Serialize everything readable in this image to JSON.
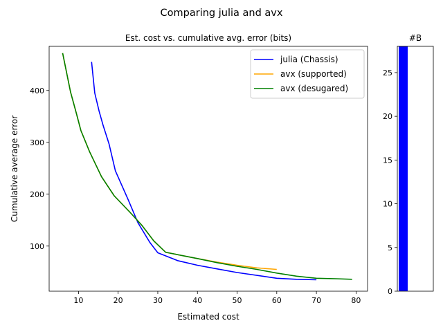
{
  "figure": {
    "suptitle": "Comparing julia and avx"
  },
  "chart_data": [
    {
      "type": "line",
      "title": "Est. cost vs. cumulative avg. error (bits)",
      "xlabel": "Estimated cost",
      "ylabel": "Cumulative average error",
      "xlim": [
        2.6,
        82.9
      ],
      "ylim": [
        13,
        485
      ],
      "xticks": [
        10,
        20,
        30,
        40,
        50,
        60,
        70,
        80
      ],
      "yticks": [
        100,
        200,
        300,
        400
      ],
      "grid": false,
      "legend_position": "top-right",
      "series": [
        {
          "name": "julia (Chassis)",
          "color": "#0000ff",
          "points": [
            [
              13.3,
              455
            ],
            [
              14.1,
              395
            ],
            [
              15.2,
              360
            ],
            [
              16.2,
              333
            ],
            [
              17.7,
              297
            ],
            [
              19.3,
              245
            ],
            [
              22.5,
              190
            ],
            [
              25,
              145
            ],
            [
              28,
              107
            ],
            [
              30,
              87
            ],
            [
              35,
              72
            ],
            [
              40,
              63
            ],
            [
              45,
              56
            ],
            [
              50,
              49
            ],
            [
              60,
              38
            ],
            [
              65,
              36
            ],
            [
              70,
              35
            ]
          ]
        },
        {
          "name": "avx (supported)",
          "color": "#ffa500",
          "points": [
            [
              6,
              472
            ],
            [
              8,
              397
            ],
            [
              9.5,
              355
            ],
            [
              10.6,
              323
            ],
            [
              12.8,
              282
            ],
            [
              15.8,
              234
            ],
            [
              19,
              197
            ],
            [
              23,
              165
            ],
            [
              26,
              140
            ],
            [
              29,
              110
            ],
            [
              32,
              88
            ],
            [
              40,
              76
            ],
            [
              45,
              69
            ],
            [
              50,
              63
            ],
            [
              55,
              58
            ],
            [
              60,
              55
            ]
          ]
        },
        {
          "name": "avx (desugared)",
          "color": "#008000",
          "points": [
            [
              6,
              472
            ],
            [
              8,
              397
            ],
            [
              9.5,
              355
            ],
            [
              10.6,
              323
            ],
            [
              12.8,
              282
            ],
            [
              15.8,
              234
            ],
            [
              19,
              197
            ],
            [
              23,
              165
            ],
            [
              26,
              140
            ],
            [
              29,
              110
            ],
            [
              32,
              88
            ],
            [
              40,
              76
            ],
            [
              45,
              68
            ],
            [
              50,
              61
            ],
            [
              55,
              55
            ],
            [
              60,
              48
            ],
            [
              65,
              42
            ],
            [
              70,
              38
            ],
            [
              75,
              37
            ],
            [
              79,
              36
            ]
          ]
        }
      ]
    },
    {
      "type": "bar",
      "title": "#B",
      "values": [
        28
      ],
      "color": "#0000ff",
      "ylim": [
        0,
        28
      ],
      "yticks": [
        0,
        5,
        10,
        15,
        20,
        25
      ]
    }
  ]
}
